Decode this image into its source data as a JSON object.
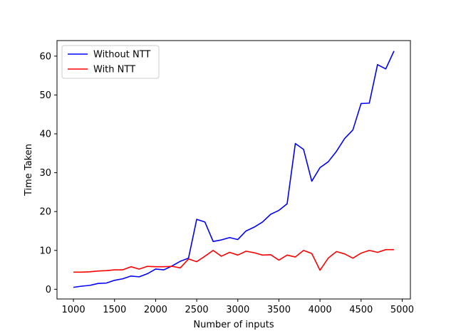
{
  "chart_data": {
    "type": "line",
    "title": "",
    "xlabel": "Number of inputs",
    "ylabel": "Time Taken",
    "xlim": [
      800,
      5100
    ],
    "ylim": [
      -2.5,
      64
    ],
    "xticks": [
      1000,
      1500,
      2000,
      2500,
      3000,
      3500,
      4000,
      4500,
      5000
    ],
    "yticks": [
      0,
      10,
      20,
      30,
      40,
      50,
      60
    ],
    "grid": false,
    "legend_position": "top-left",
    "x": [
      1000,
      1100,
      1200,
      1300,
      1400,
      1500,
      1600,
      1700,
      1800,
      1900,
      2000,
      2100,
      2200,
      2300,
      2400,
      2500,
      2600,
      2700,
      2800,
      2900,
      3000,
      3100,
      3200,
      3300,
      3400,
      3500,
      3600,
      3700,
      3800,
      3900,
      4000,
      4100,
      4200,
      4300,
      4400,
      4500,
      4600,
      4700,
      4800,
      4900
    ],
    "series": [
      {
        "name": "Without NTT",
        "color": "#0000ff",
        "values": [
          0.5,
          0.8,
          1.0,
          1.5,
          1.6,
          2.3,
          2.7,
          3.4,
          3.2,
          4.0,
          5.2,
          5.0,
          6.0,
          7.2,
          8.0,
          18.0,
          17.3,
          12.3,
          12.7,
          13.3,
          12.8,
          15.0,
          16.0,
          17.3,
          19.3,
          20.3,
          22.0,
          37.5,
          36.0,
          27.8,
          31.3,
          32.8,
          35.5,
          38.8,
          41.0,
          47.8,
          47.9,
          57.8,
          56.7,
          61.3
        ]
      },
      {
        "name": "With NTT",
        "color": "#ff0000",
        "values": [
          4.4,
          4.4,
          4.5,
          4.7,
          4.8,
          5.0,
          5.0,
          5.8,
          5.2,
          5.9,
          5.8,
          5.8,
          5.9,
          5.5,
          7.8,
          7.1,
          8.5,
          10.0,
          8.5,
          9.5,
          8.8,
          9.8,
          9.4,
          8.8,
          8.9,
          7.5,
          8.8,
          8.3,
          10.0,
          9.2,
          4.9,
          8.0,
          9.7,
          9.1,
          8.0,
          9.3,
          10.0,
          9.5,
          10.2,
          10.2
        ]
      }
    ]
  }
}
